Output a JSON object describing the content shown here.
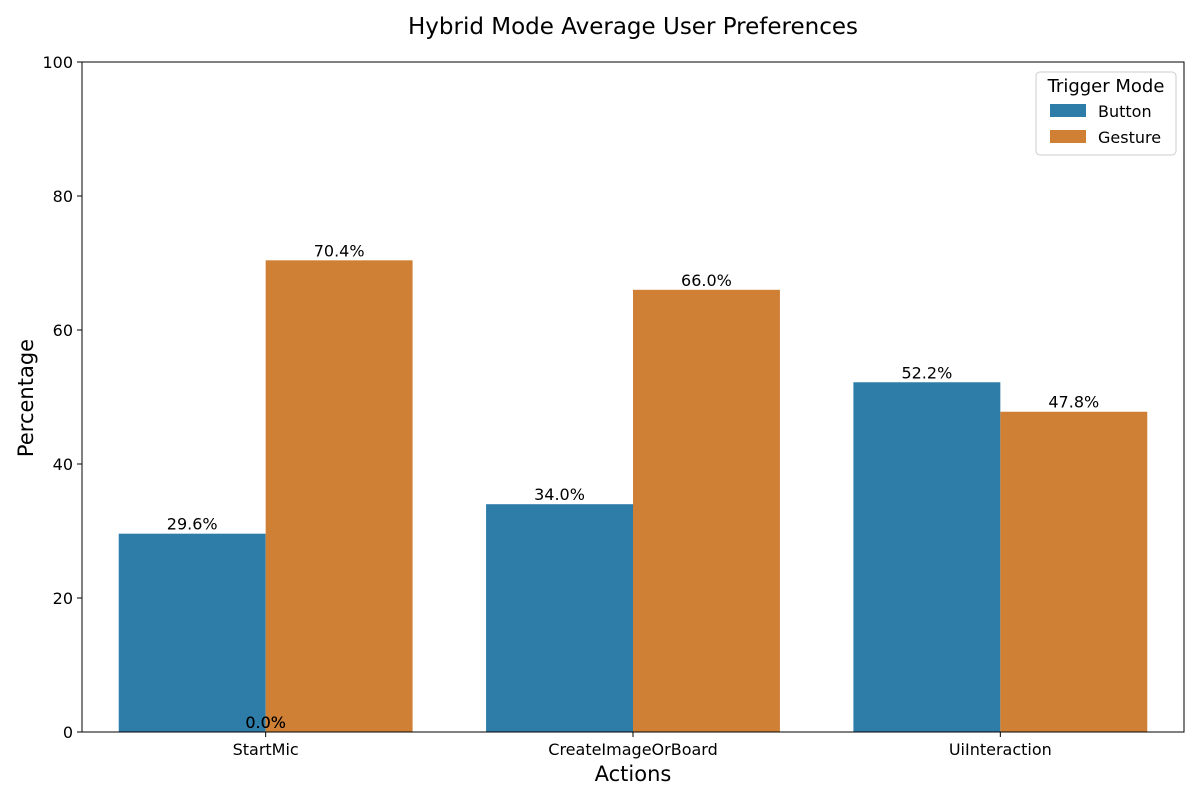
{
  "chart_data": {
    "type": "bar",
    "title": "Hybrid Mode Average User Preferences",
    "xlabel": "Actions",
    "ylabel": "Percentage",
    "categories": [
      "StartMic",
      "CreateImageOrBoard",
      "UiInteraction"
    ],
    "series": [
      {
        "name": "Button",
        "color": "#2e7ca8",
        "values": [
          29.6,
          34.0,
          52.2
        ]
      },
      {
        "name": "Gesture",
        "color": "#cf8035",
        "values": [
          70.4,
          66.0,
          47.8
        ]
      }
    ],
    "data_labels": [
      [
        "29.6%",
        "34.0%",
        "52.2%"
      ],
      [
        "70.4%",
        "66.0%",
        "47.8%"
      ]
    ],
    "extra_labels": [
      {
        "text": "0.0%",
        "category": 0,
        "value": 0
      },
      {
        "text": "0.0%",
        "category": 0,
        "value": 0
      }
    ],
    "ylim": [
      0,
      100
    ],
    "yticks": [
      0,
      20,
      40,
      60,
      80,
      100
    ],
    "grid": false,
    "legend": {
      "title": "Trigger Mode",
      "placement": "top-right",
      "entries": [
        "Button",
        "Gesture"
      ]
    }
  }
}
